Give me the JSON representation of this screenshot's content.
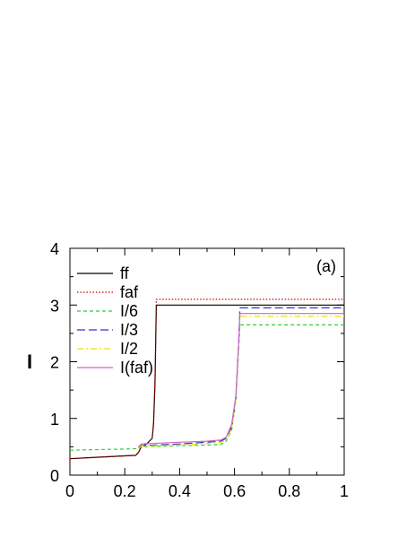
{
  "chart_data": {
    "type": "line",
    "title": "",
    "xlabel": "",
    "ylabel": "I",
    "xlim": [
      0,
      1
    ],
    "ylim": [
      0,
      4
    ],
    "x_ticks": [
      "0",
      "0.2",
      "0.4",
      "0.6",
      "0.8",
      "1"
    ],
    "y_ticks": [
      "0",
      "1",
      "2",
      "3",
      "4"
    ],
    "grid": false,
    "legend_position": "top-left",
    "annotation": "(a)",
    "series": [
      {
        "name": "ff",
        "color": "#000000",
        "dash": "solid",
        "points": [
          [
            0,
            0.29
          ],
          [
            0.08,
            0.31
          ],
          [
            0.16,
            0.33
          ],
          [
            0.24,
            0.35
          ],
          [
            0.25,
            0.4
          ],
          [
            0.26,
            0.5
          ],
          [
            0.28,
            0.55
          ],
          [
            0.3,
            0.65
          ],
          [
            0.305,
            0.9
          ],
          [
            0.31,
            1.6
          ],
          [
            0.315,
            3.0
          ],
          [
            0.4,
            3.0
          ],
          [
            0.6,
            3.0
          ],
          [
            0.8,
            3.0
          ],
          [
            1.0,
            3.0
          ]
        ]
      },
      {
        "name": "faf",
        "color": "#cc0000",
        "dash": "dotted",
        "points": [
          [
            0,
            0.29
          ],
          [
            0.08,
            0.31
          ],
          [
            0.16,
            0.33
          ],
          [
            0.24,
            0.35
          ],
          [
            0.25,
            0.4
          ],
          [
            0.26,
            0.5
          ],
          [
            0.28,
            0.55
          ],
          [
            0.3,
            0.65
          ],
          [
            0.305,
            0.95
          ],
          [
            0.31,
            1.7
          ],
          [
            0.315,
            3.1
          ],
          [
            0.4,
            3.1
          ],
          [
            0.6,
            3.1
          ],
          [
            0.8,
            3.1
          ],
          [
            1.0,
            3.1
          ]
        ]
      },
      {
        "name": "I/6",
        "color": "#33cc33",
        "dash": "dashed",
        "points": [
          [
            0,
            0.44
          ],
          [
            0.1,
            0.45
          ],
          [
            0.2,
            0.46
          ],
          [
            0.25,
            0.47
          ],
          [
            0.26,
            0.5
          ],
          [
            0.4,
            0.52
          ],
          [
            0.5,
            0.53
          ],
          [
            0.55,
            0.54
          ],
          [
            0.57,
            0.6
          ],
          [
            0.59,
            0.8
          ],
          [
            0.605,
            1.3
          ],
          [
            0.615,
            2.2
          ],
          [
            0.62,
            2.65
          ],
          [
            0.8,
            2.65
          ],
          [
            1.0,
            2.65
          ]
        ]
      },
      {
        "name": "I/3",
        "color": "#3333cc",
        "dash": "longdash",
        "points": [
          [
            0.25,
            0.48
          ],
          [
            0.26,
            0.52
          ],
          [
            0.4,
            0.55
          ],
          [
            0.5,
            0.58
          ],
          [
            0.55,
            0.6
          ],
          [
            0.57,
            0.65
          ],
          [
            0.59,
            0.85
          ],
          [
            0.605,
            1.35
          ],
          [
            0.615,
            2.3
          ],
          [
            0.62,
            2.95
          ],
          [
            0.8,
            2.95
          ],
          [
            1.0,
            2.95
          ]
        ]
      },
      {
        "name": "I/2",
        "color": "#e6e600",
        "dash": "dashdot",
        "points": [
          [
            0.25,
            0.47
          ],
          [
            0.26,
            0.51
          ],
          [
            0.4,
            0.53
          ],
          [
            0.5,
            0.56
          ],
          [
            0.55,
            0.58
          ],
          [
            0.57,
            0.62
          ],
          [
            0.59,
            0.82
          ],
          [
            0.605,
            1.3
          ],
          [
            0.615,
            2.25
          ],
          [
            0.62,
            2.8
          ],
          [
            0.8,
            2.8
          ],
          [
            1.0,
            2.8
          ]
        ]
      },
      {
        "name": "I(faf)",
        "color": "#cc66cc",
        "dash": "solid",
        "points": [
          [
            0.25,
            0.5
          ],
          [
            0.26,
            0.55
          ],
          [
            0.4,
            0.58
          ],
          [
            0.5,
            0.6
          ],
          [
            0.55,
            0.62
          ],
          [
            0.57,
            0.67
          ],
          [
            0.59,
            0.9
          ],
          [
            0.605,
            1.4
          ],
          [
            0.615,
            2.3
          ],
          [
            0.62,
            2.85
          ],
          [
            0.8,
            2.85
          ],
          [
            1.0,
            2.85
          ]
        ]
      }
    ]
  }
}
